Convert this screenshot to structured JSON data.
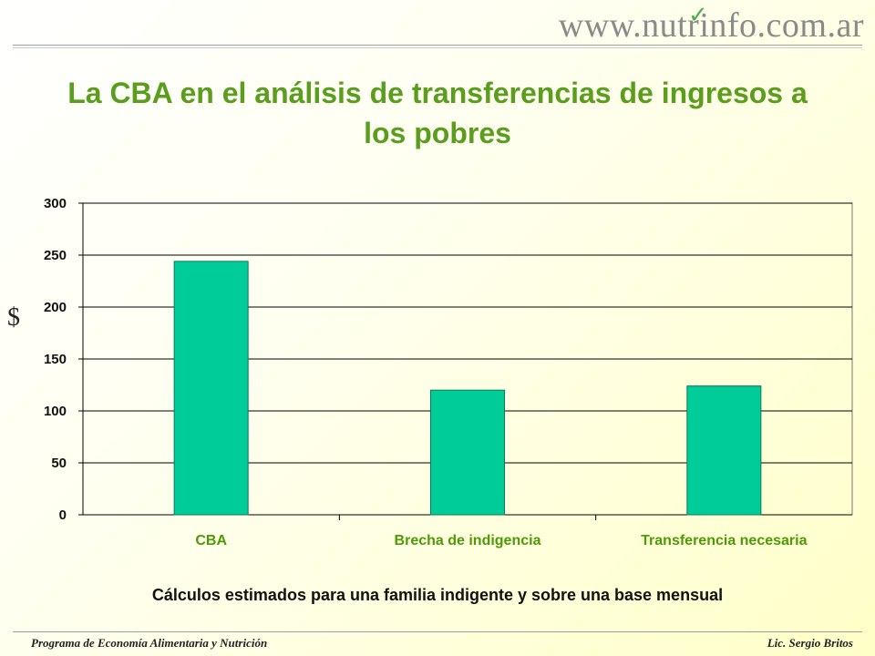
{
  "logo": {
    "text": "www.nutrinfo.com.ar"
  },
  "colors": {
    "bar": "#00cc99",
    "bar_border": "#0a7a55",
    "title": "#5b9e1e",
    "grid": "#000000"
  },
  "chart_data": {
    "type": "bar",
    "title": "La CBA en el análisis de transferencias de ingresos a los pobres",
    "ylabel": "$",
    "xlabel": "",
    "categories": [
      "CBA",
      "Brecha de indigencia",
      "Transferencia necesaria"
    ],
    "values": [
      244,
      120,
      124
    ],
    "ylim": [
      0,
      300
    ],
    "yticks": [
      0,
      50,
      100,
      150,
      200,
      250,
      300
    ],
    "grid": true,
    "legend": "none"
  },
  "caption": "Cálculos estimados para una familia indigente y sobre una base mensual",
  "footer": {
    "left": "Programa de Economía Alimentaria y Nutrición",
    "right": "Lic. Sergio Britos"
  }
}
